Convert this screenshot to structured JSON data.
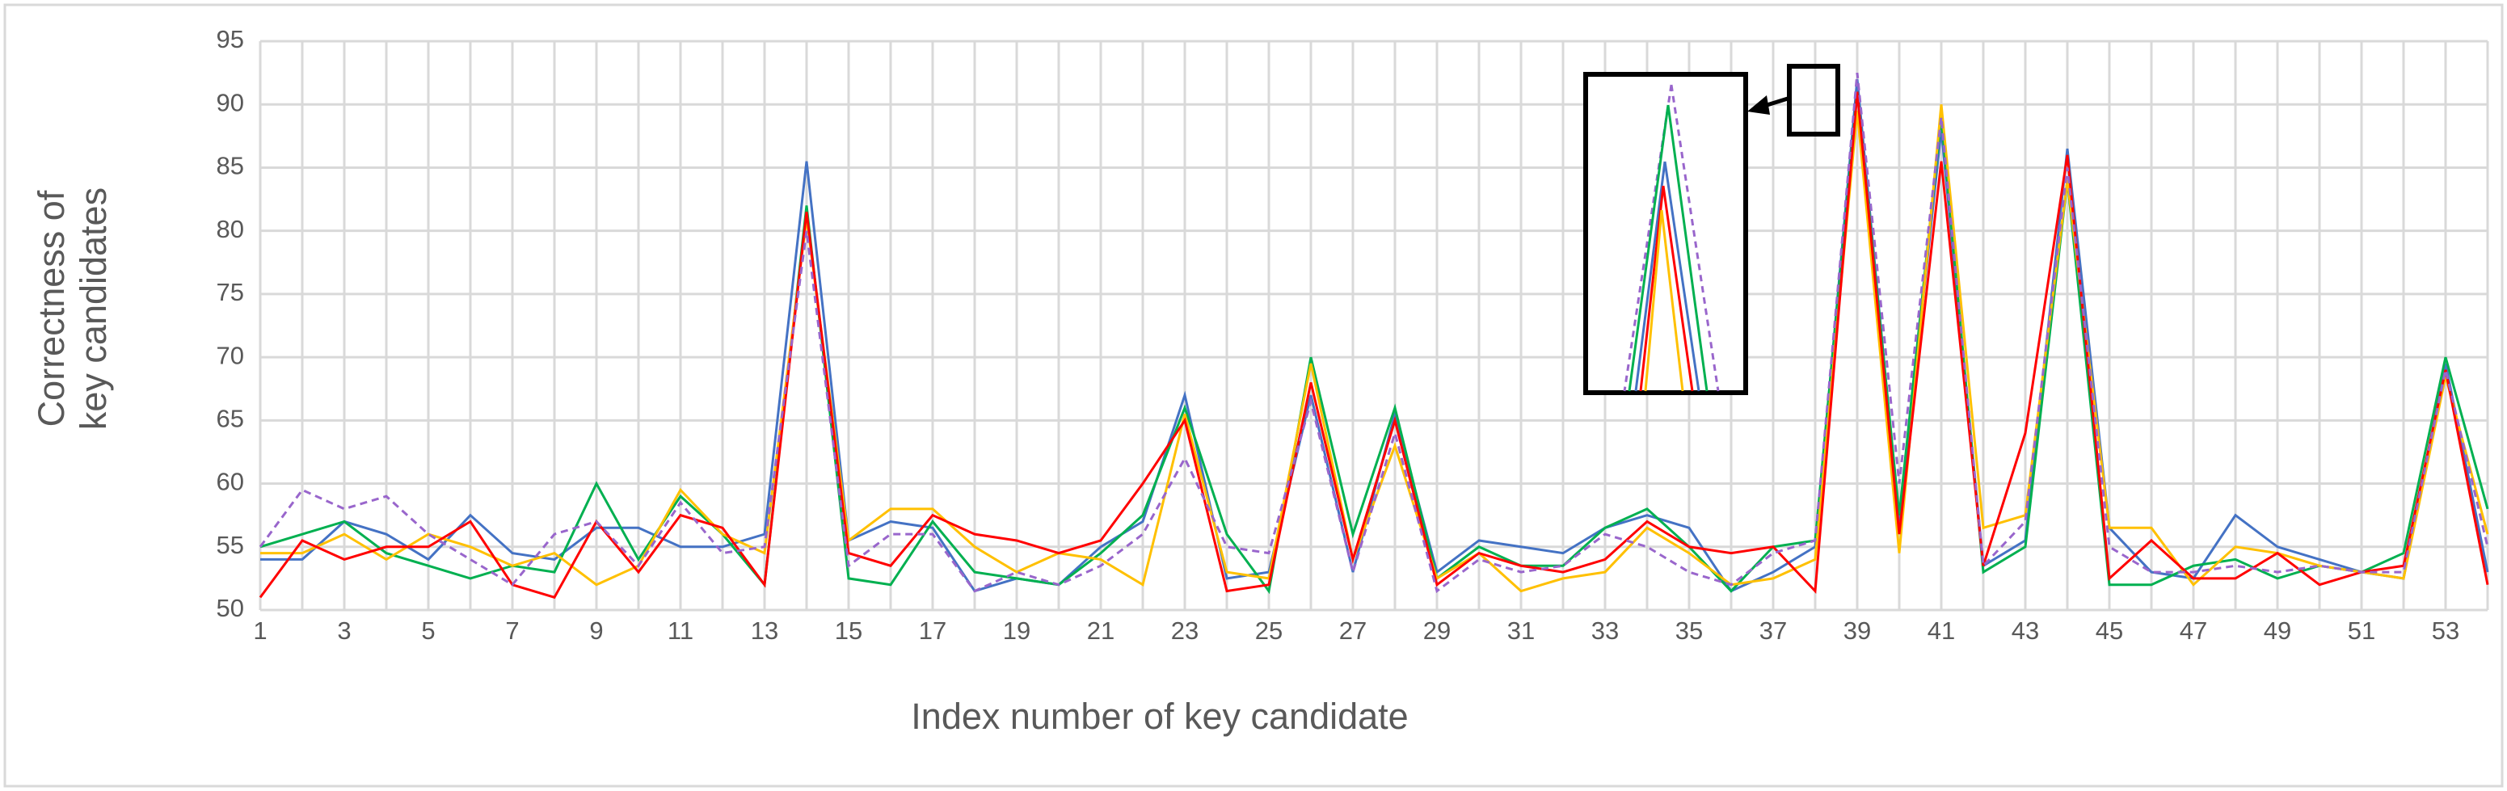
{
  "chart_data": {
    "type": "line",
    "x_label": "Index number of key candidate",
    "y_label": "Correctness of key candidates",
    "x": [
      1,
      2,
      3,
      4,
      5,
      6,
      7,
      8,
      9,
      10,
      11,
      12,
      13,
      14,
      15,
      16,
      17,
      18,
      19,
      20,
      21,
      22,
      23,
      24,
      25,
      26,
      27,
      28,
      29,
      30,
      31,
      32,
      33,
      34,
      35,
      36,
      37,
      38,
      39,
      40,
      41,
      42,
      43,
      44,
      45,
      46,
      47,
      48,
      49,
      50,
      51,
      52,
      53,
      54
    ],
    "xlim": [
      1,
      54
    ],
    "xticks": [
      1,
      3,
      5,
      7,
      9,
      11,
      13,
      15,
      17,
      19,
      21,
      23,
      25,
      27,
      29,
      31,
      33,
      35,
      37,
      39,
      41,
      43,
      45,
      47,
      49,
      51,
      53
    ],
    "ylim": [
      50,
      95
    ],
    "yticks": [
      50,
      55,
      60,
      65,
      70,
      75,
      80,
      85,
      90,
      95
    ],
    "grid": true,
    "series": [
      {
        "color": "#4472c4",
        "values": [
          54,
          54,
          57,
          56,
          54,
          57.5,
          54.5,
          54,
          56.5,
          56.5,
          55,
          55,
          56,
          85.5,
          55.5,
          57,
          56.5,
          51.5,
          52.5,
          52,
          55,
          57,
          67,
          52.5,
          53,
          67,
          53,
          65.5,
          53,
          55.5,
          55,
          54.5,
          56.5,
          57.5,
          56.5,
          51.5,
          53,
          55,
          92,
          57,
          88,
          53.5,
          55.5,
          86.5,
          56.5,
          53,
          52.5,
          57.5,
          55,
          54,
          53,
          52.5,
          69.5,
          53
        ]
      },
      {
        "color": "#00b050",
        "values": [
          55,
          56,
          57,
          54.5,
          53.5,
          52.5,
          53.5,
          53,
          60,
          54,
          59,
          56,
          52,
          82,
          52.5,
          52,
          57,
          53,
          52.5,
          52,
          54.5,
          57.5,
          66,
          56,
          51.5,
          70,
          56,
          66,
          52.5,
          55,
          53.5,
          53.5,
          56.5,
          58,
          55,
          51.5,
          55,
          55.5,
          91,
          57.5,
          89,
          53,
          55,
          84,
          52,
          52,
          53.5,
          54,
          52.5,
          53.5,
          53,
          54.5,
          70,
          58
        ]
      },
      {
        "color": "#ffc000",
        "values": [
          54.5,
          54.5,
          56,
          54,
          56,
          55,
          53.5,
          54.5,
          52,
          53.5,
          59.5,
          56,
          54.5,
          81,
          55.5,
          58,
          58,
          55,
          53,
          54.5,
          54,
          52,
          65.5,
          53,
          52.5,
          69.5,
          54,
          63,
          52.5,
          54.5,
          51.5,
          52.5,
          53,
          56.5,
          54.5,
          52,
          52.5,
          54,
          89.5,
          54.5,
          90,
          56.5,
          57.5,
          84,
          56.5,
          56.5,
          52,
          55,
          54.5,
          53.5,
          53,
          52.5,
          68.5,
          56
        ]
      },
      {
        "color": "#ff0000",
        "values": [
          51,
          55.5,
          54,
          55,
          55,
          57,
          52,
          51,
          57,
          53,
          57.5,
          56.5,
          52,
          81.5,
          54.5,
          53.5,
          57.5,
          56,
          55.5,
          54.5,
          55.5,
          60,
          65,
          51.5,
          52,
          68,
          54,
          65,
          52,
          54.5,
          53.5,
          53,
          54,
          57,
          55,
          54.5,
          55,
          51.5,
          91,
          56,
          85.5,
          53.5,
          64,
          86,
          52.5,
          55.5,
          52.5,
          52.5,
          54.5,
          52,
          53,
          53.5,
          69,
          52
        ]
      },
      {
        "color": "#9966cc",
        "dashed": true,
        "values": [
          55,
          59.5,
          58,
          59,
          56,
          54,
          52,
          56,
          57,
          53.5,
          58.5,
          54.5,
          55,
          80,
          53.5,
          56,
          56,
          51.5,
          53,
          52,
          53.5,
          56,
          62,
          55,
          54.5,
          66.5,
          53,
          64,
          51.5,
          54,
          53,
          53.5,
          56,
          55,
          53,
          52,
          54.5,
          55.5,
          92.5,
          60,
          89,
          53.5,
          57,
          85,
          55,
          53,
          53,
          53.5,
          53,
          53.5,
          53,
          53,
          69,
          55
        ]
      }
    ]
  }
}
